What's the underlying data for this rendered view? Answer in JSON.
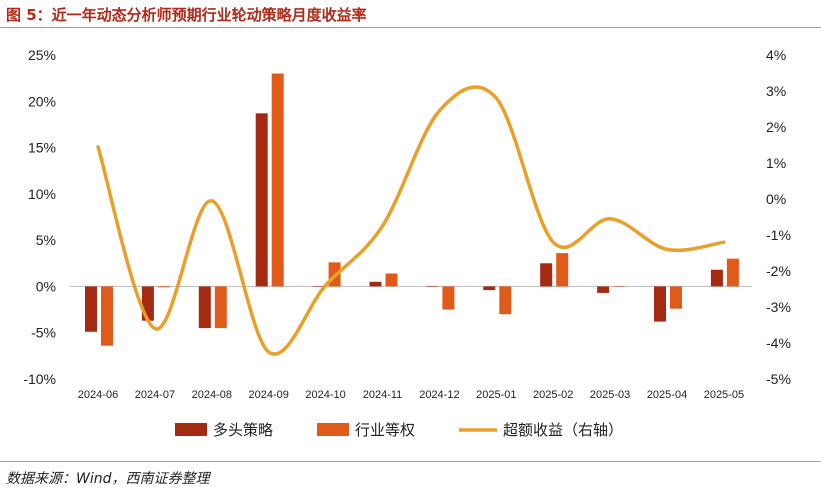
{
  "title": "图 5：近一年动态分析师预期行业轮动策略月度收益率",
  "source": "数据来源：Wind，西南证券整理",
  "colors": {
    "long": "#a52a12",
    "industry": "#e05a1a",
    "excess": "#e8a02a"
  },
  "chart_data": {
    "type": "bar+line",
    "categories": [
      "2024-06",
      "2024-07",
      "2024-08",
      "2024-09",
      "2024-10",
      "2024-11",
      "2024-12",
      "2025-01",
      "2025-02",
      "2025-03",
      "2025-04",
      "2025-05"
    ],
    "series": [
      {
        "name": "多头策略",
        "axis": "left",
        "type": "bar",
        "values": [
          -4.9,
          -3.7,
          -4.5,
          18.7,
          0.0,
          0.5,
          0.0,
          -0.4,
          2.5,
          -0.7,
          -3.8,
          1.8
        ]
      },
      {
        "name": "行业等权",
        "axis": "left",
        "type": "bar",
        "values": [
          -6.4,
          -0.1,
          -4.5,
          23.0,
          2.6,
          1.4,
          -2.5,
          -3.0,
          3.6,
          0.0,
          -2.4,
          3.0
        ]
      },
      {
        "name": "超额收益（右轴）",
        "axis": "right",
        "type": "line",
        "values": [
          1.45,
          -3.6,
          -0.05,
          -4.25,
          -2.4,
          -0.75,
          2.45,
          2.8,
          -1.2,
          -0.55,
          -1.4,
          -1.2
        ]
      }
    ],
    "left_ticks": [
      "25%",
      "20%",
      "15%",
      "10%",
      "5%",
      "0%",
      "-5%",
      "-10%"
    ],
    "right_ticks": [
      "4%",
      "3%",
      "2%",
      "1%",
      "0%",
      "-1%",
      "-2%",
      "-3%",
      "-4%",
      "-5%"
    ],
    "ylim_left": [
      -10,
      25
    ],
    "ylim_right": [
      -5,
      4
    ],
    "legend_position": "bottom"
  }
}
